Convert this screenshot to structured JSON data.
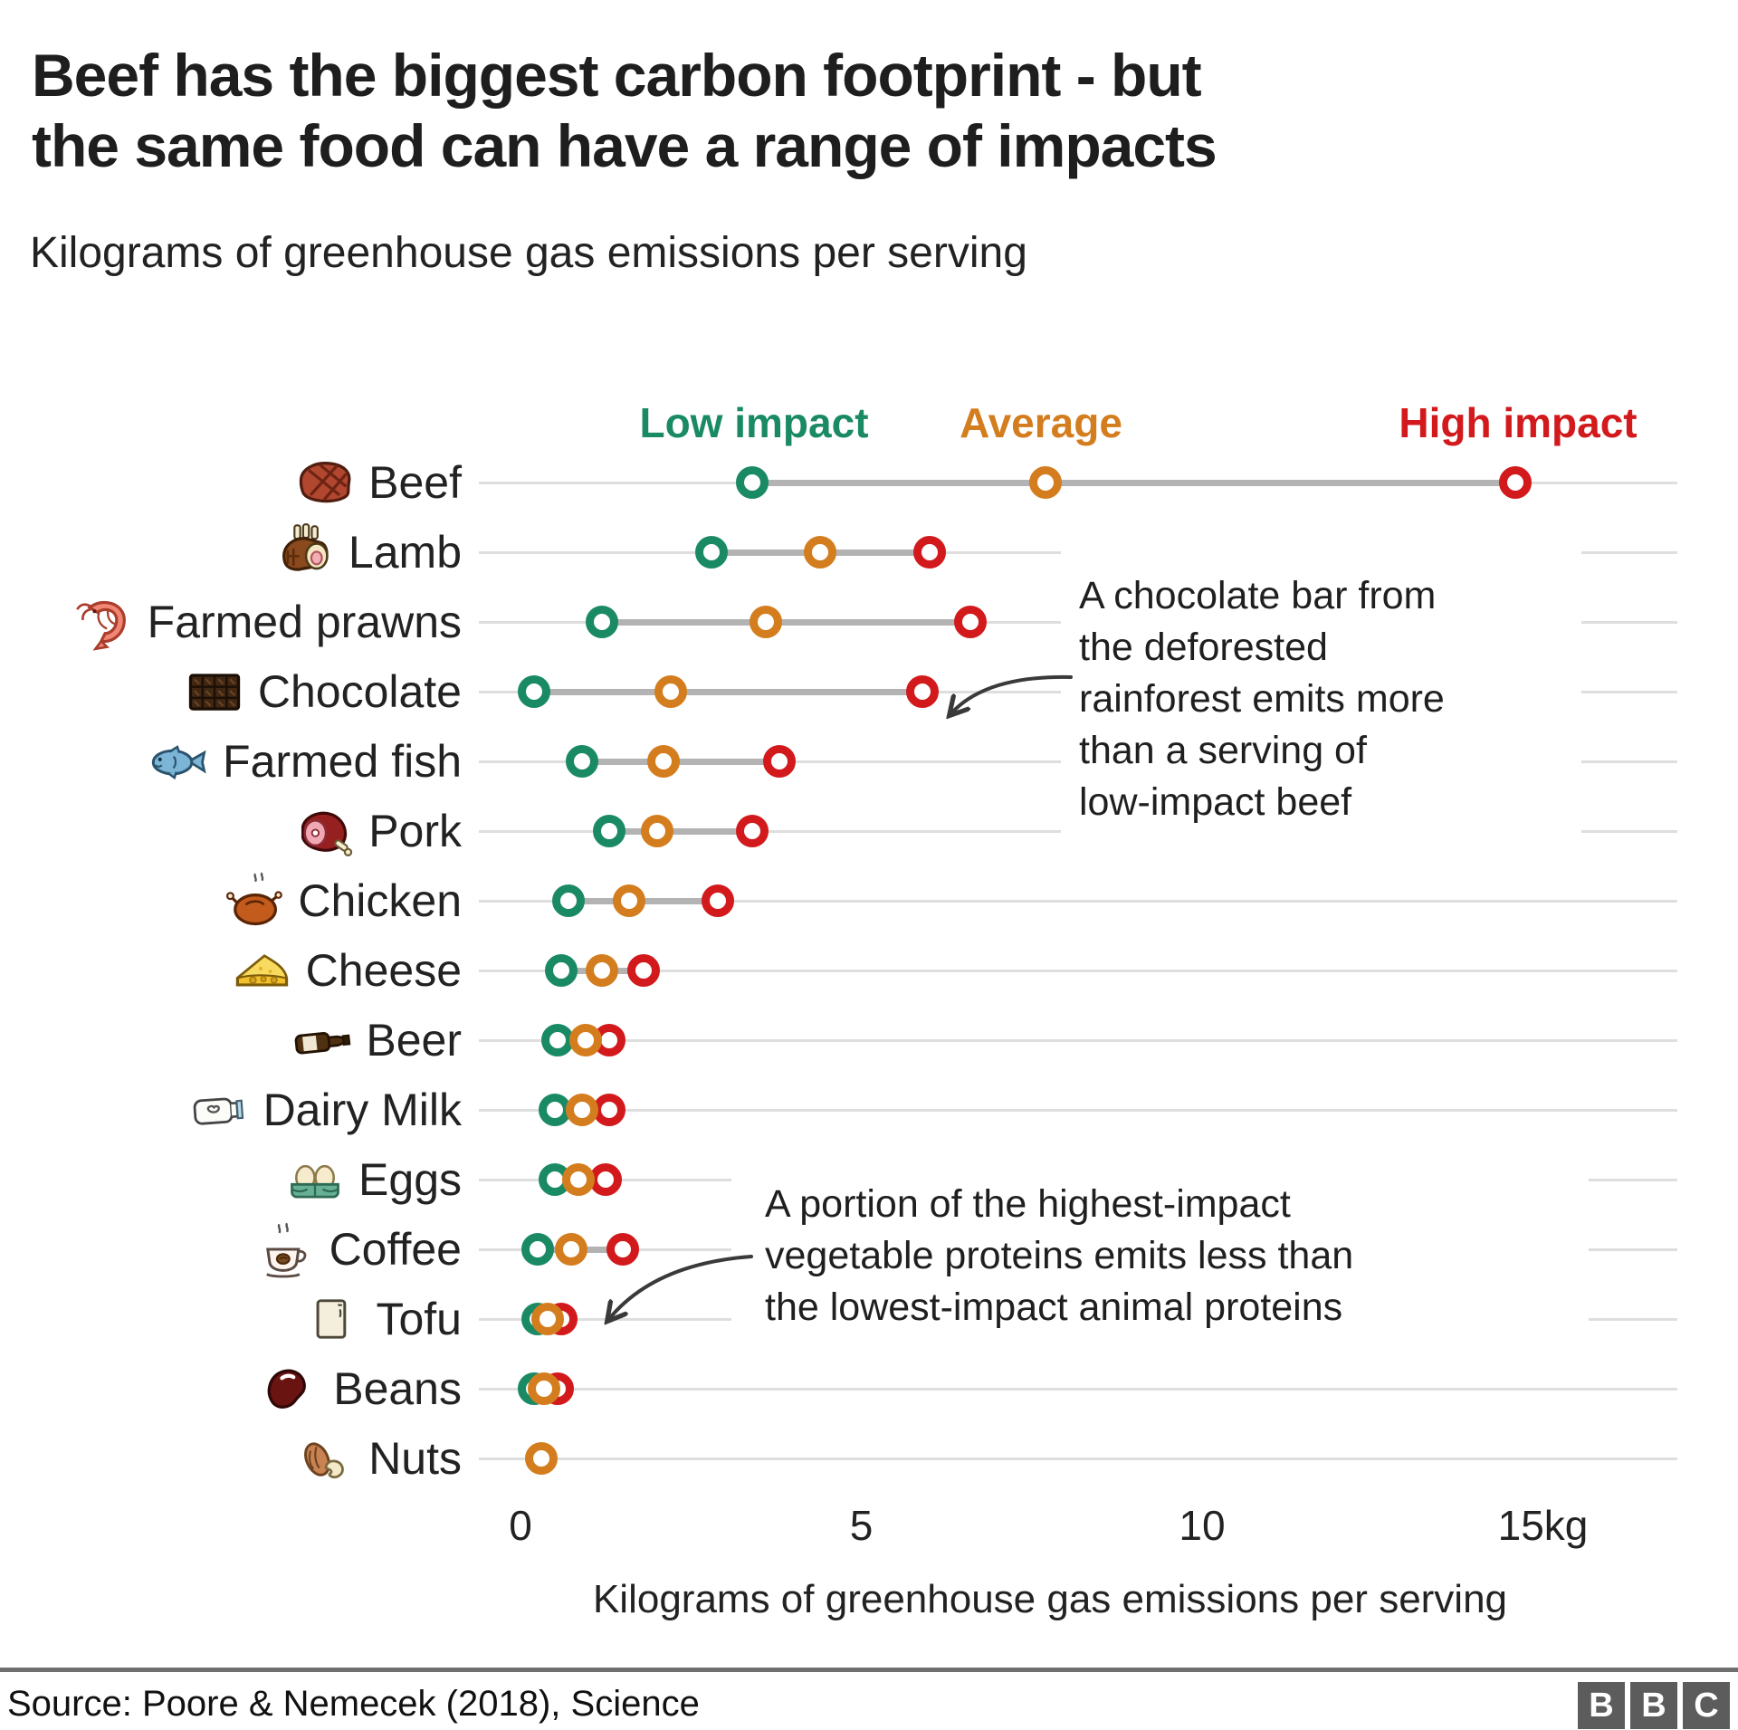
{
  "header": {
    "title_line1": "Beef has the biggest carbon footprint - but",
    "title_line2": "the same food can have a range of impacts",
    "subtitle": "Kilograms of greenhouse gas emissions per serving"
  },
  "colors": {
    "low": "#1a8a64",
    "average": "#d47d1e",
    "high": "#d2191c"
  },
  "legend": {
    "items": [
      {
        "id": "low",
        "label": "Low impact",
        "color": "#1a8a64"
      },
      {
        "id": "average",
        "label": "Average",
        "color": "#d47d1e"
      },
      {
        "id": "high",
        "label": "High impact",
        "color": "#d2191c"
      }
    ]
  },
  "chart_data": {
    "type": "dot-range",
    "title": "Beef has the biggest carbon footprint - but the same food can have a range of impacts",
    "subtitle": "Kilograms of greenhouse gas emissions per serving",
    "xlabel": "Kilograms of greenhouse gas emissions per serving",
    "xlim": [
      0,
      15
    ],
    "unit": "kg greenhouse gas emissions per serving",
    "grid": true,
    "legend_position": "top",
    "series_names": [
      "Low impact",
      "Average",
      "High impact"
    ],
    "rows": [
      {
        "label": "Beef",
        "icon": "steak",
        "low": 3.4,
        "average": 7.7,
        "high": 14.6
      },
      {
        "label": "Lamb",
        "icon": "lamb-chop",
        "low": 2.8,
        "average": 4.4,
        "high": 6.0
      },
      {
        "label": "Farmed prawns",
        "icon": "prawn",
        "low": 1.2,
        "average": 3.6,
        "high": 6.6
      },
      {
        "label": "Chocolate",
        "icon": "chocolate-bar",
        "low": 0.2,
        "average": 2.2,
        "high": 5.9
      },
      {
        "label": "Farmed fish",
        "icon": "fish",
        "low": 0.9,
        "average": 2.1,
        "high": 3.8
      },
      {
        "label": "Pork",
        "icon": "ham",
        "low": 1.3,
        "average": 2.0,
        "high": 3.4
      },
      {
        "label": "Chicken",
        "icon": "roast-chicken",
        "low": 0.7,
        "average": 1.6,
        "high": 2.9
      },
      {
        "label": "Cheese",
        "icon": "cheese",
        "low": 0.6,
        "average": 1.2,
        "high": 1.8
      },
      {
        "label": "Beer",
        "icon": "beer-bottle",
        "low": 0.55,
        "average": 0.95,
        "high": 1.3
      },
      {
        "label": "Dairy Milk",
        "icon": "milk-bottle",
        "low": 0.5,
        "average": 0.9,
        "high": 1.3
      },
      {
        "label": "Eggs",
        "icon": "eggs",
        "low": 0.5,
        "average": 0.85,
        "high": 1.25
      },
      {
        "label": "Coffee",
        "icon": "coffee-cup",
        "low": 0.25,
        "average": 0.75,
        "high": 1.5
      },
      {
        "label": "Tofu",
        "icon": "tofu",
        "low": 0.25,
        "average": 0.4,
        "high": 0.6
      },
      {
        "label": "Beans",
        "icon": "bean",
        "low": 0.2,
        "average": 0.35,
        "high": 0.55
      },
      {
        "label": "Nuts",
        "icon": "nuts",
        "low": null,
        "average": 0.3,
        "high": null
      }
    ]
  },
  "axis": {
    "ticks": [
      {
        "value": 0,
        "label": "0"
      },
      {
        "value": 5,
        "label": "5"
      },
      {
        "value": 10,
        "label": "10"
      },
      {
        "value": 15,
        "label": "15kg"
      }
    ],
    "title": "Kilograms of greenhouse gas emissions per serving"
  },
  "annotations": [
    {
      "id": "chocolate-note",
      "lines": [
        "A chocolate bar from",
        "the deforested",
        "rainforest emits more",
        "than a serving of",
        "low-impact beef"
      ]
    },
    {
      "id": "vegetable-note",
      "lines": [
        "A portion of the highest-impact",
        "vegetable proteins emits less than",
        "the lowest-impact animal proteins"
      ]
    }
  ],
  "footer": {
    "source": "Source: Poore & Nemecek (2018), Science",
    "logo_letters": [
      "B",
      "B",
      "C"
    ]
  }
}
